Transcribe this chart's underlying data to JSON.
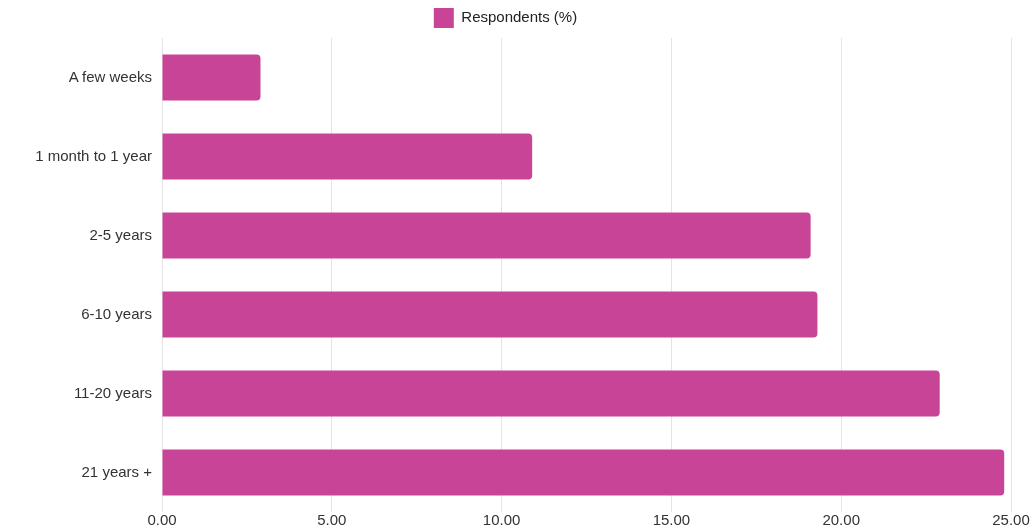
{
  "chart_data": {
    "type": "bar",
    "orientation": "horizontal",
    "categories": [
      "A few weeks",
      "1 month to 1 year",
      "2-5 years",
      "6-10 years",
      "11-20 years",
      "21 years +"
    ],
    "series": [
      {
        "name": "Respondents (%)",
        "color": "#c74497",
        "values": [
          2.9,
          10.9,
          19.1,
          19.3,
          22.9,
          24.8
        ]
      }
    ],
    "xlim": [
      0,
      25
    ],
    "xticks": [
      {
        "value": 0,
        "label": "0.00"
      },
      {
        "value": 5,
        "label": "5.00"
      },
      {
        "value": 10,
        "label": "10.00"
      },
      {
        "value": 15,
        "label": "15.00"
      },
      {
        "value": 20,
        "label": "20.00"
      },
      {
        "value": 25,
        "label": "25.00"
      }
    ],
    "grid": "x",
    "legend": "top"
  }
}
